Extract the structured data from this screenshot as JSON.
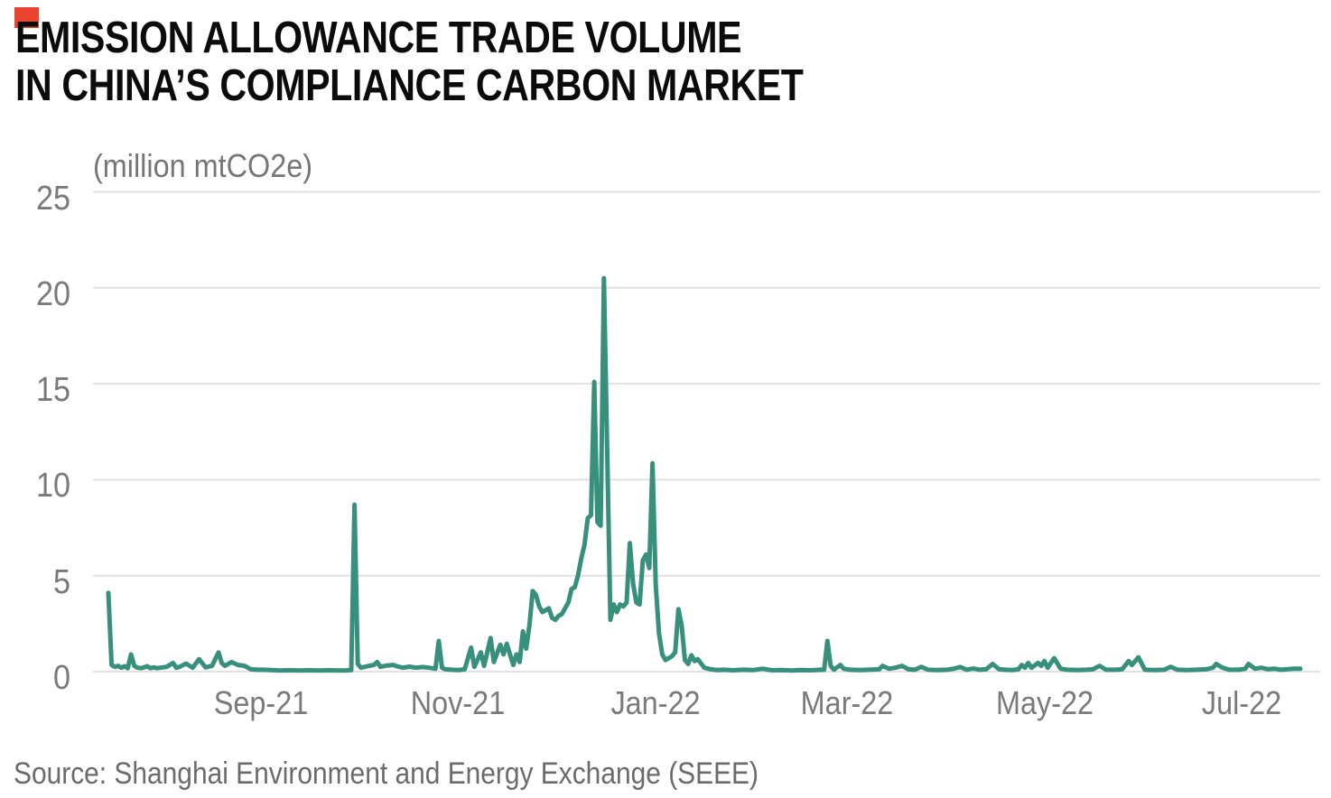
{
  "brand": {
    "mark_color": "#e8432d"
  },
  "title": {
    "line1": "EMISSION ALLOWANCE TRADE VOLUME",
    "line2": "IN CHINA’S COMPLIANCE CARBON MARKET"
  },
  "source_text": "Source: Shanghai Environment and Energy Exchange (SEEE)",
  "chart_data": {
    "type": "line",
    "title": "Emission allowance trade volume in China's compliance carbon market",
    "unit_label": "(million mtCO2e)",
    "ylabel": "million mtCO2e",
    "ylim": [
      0,
      25
    ],
    "y_ticks": [
      25,
      20,
      15,
      10,
      5,
      0
    ],
    "grid": true,
    "legend": "none",
    "line_color": "#36907b",
    "grid_color": "#e1e1e1",
    "axis_text_color": "#7a7a7a",
    "start_date": "2021-07-16",
    "x_ticks": [
      {
        "label": "Sep-21",
        "day": 47
      },
      {
        "label": "Nov-21",
        "day": 108
      },
      {
        "label": "Jan-22",
        "day": 169
      },
      {
        "label": "Mar-22",
        "day": 228
      },
      {
        "label": "May-22",
        "day": 289
      },
      {
        "label": "Jul-22",
        "day": 350
      }
    ],
    "points": [
      [
        0,
        4.1
      ],
      [
        1,
        0.35
      ],
      [
        2,
        0.25
      ],
      [
        3,
        0.3
      ],
      [
        4,
        0.2
      ],
      [
        5,
        0.28
      ],
      [
        6,
        0.18
      ],
      [
        7,
        0.9
      ],
      [
        8,
        0.3
      ],
      [
        9,
        0.2
      ],
      [
        10,
        0.18
      ],
      [
        11,
        0.22
      ],
      [
        12,
        0.28
      ],
      [
        13,
        0.18
      ],
      [
        14,
        0.22
      ],
      [
        15,
        0.18
      ],
      [
        16,
        0.2
      ],
      [
        18,
        0.25
      ],
      [
        20,
        0.45
      ],
      [
        21,
        0.2
      ],
      [
        22,
        0.25
      ],
      [
        24,
        0.42
      ],
      [
        26,
        0.2
      ],
      [
        28,
        0.65
      ],
      [
        30,
        0.22
      ],
      [
        32,
        0.3
      ],
      [
        34,
        1.0
      ],
      [
        35,
        0.45
      ],
      [
        36,
        0.3
      ],
      [
        38,
        0.5
      ],
      [
        40,
        0.35
      ],
      [
        42,
        0.3
      ],
      [
        44,
        0.12
      ],
      [
        46,
        0.1
      ],
      [
        48,
        0.1
      ],
      [
        50,
        0.08
      ],
      [
        53,
        0.06
      ],
      [
        56,
        0.07
      ],
      [
        59,
        0.06
      ],
      [
        62,
        0.07
      ],
      [
        65,
        0.06
      ],
      [
        68,
        0.07
      ],
      [
        71,
        0.06
      ],
      [
        73,
        0.06
      ],
      [
        75,
        0.08
      ],
      [
        76,
        8.7
      ],
      [
        77,
        0.4
      ],
      [
        78,
        0.2
      ],
      [
        80,
        0.28
      ],
      [
        82,
        0.35
      ],
      [
        83,
        0.5
      ],
      [
        84,
        0.25
      ],
      [
        86,
        0.32
      ],
      [
        88,
        0.35
      ],
      [
        89,
        0.28
      ],
      [
        91,
        0.2
      ],
      [
        93,
        0.26
      ],
      [
        95,
        0.2
      ],
      [
        97,
        0.24
      ],
      [
        99,
        0.2
      ],
      [
        101,
        0.15
      ],
      [
        102,
        1.6
      ],
      [
        103,
        0.2
      ],
      [
        104,
        0.12
      ],
      [
        106,
        0.1
      ],
      [
        108,
        0.08
      ],
      [
        110,
        0.12
      ],
      [
        112,
        1.25
      ],
      [
        113,
        0.25
      ],
      [
        115,
        1.0
      ],
      [
        116,
        0.3
      ],
      [
        118,
        1.75
      ],
      [
        119,
        0.5
      ],
      [
        121,
        1.4
      ],
      [
        122,
        0.9
      ],
      [
        123,
        1.45
      ],
      [
        125,
        0.35
      ],
      [
        126,
        0.9
      ],
      [
        127,
        0.5
      ],
      [
        128,
        2.1
      ],
      [
        129,
        1.2
      ],
      [
        130,
        2.4
      ],
      [
        131,
        4.2
      ],
      [
        132,
        4.0
      ],
      [
        133,
        3.4
      ],
      [
        134,
        3.1
      ],
      [
        135,
        3.2
      ],
      [
        136,
        3.3
      ],
      [
        137,
        2.8
      ],
      [
        138,
        2.7
      ],
      [
        139,
        2.9
      ],
      [
        140,
        3.0
      ],
      [
        141,
        3.3
      ],
      [
        142,
        3.6
      ],
      [
        143,
        4.3
      ],
      [
        144,
        4.4
      ],
      [
        145,
        5.0
      ],
      [
        146,
        5.9
      ],
      [
        147,
        6.6
      ],
      [
        148,
        8.0
      ],
      [
        149,
        8.15
      ],
      [
        150,
        15.1
      ],
      [
        151,
        7.8
      ],
      [
        152,
        7.6
      ],
      [
        153,
        20.5
      ],
      [
        155,
        2.7
      ],
      [
        156,
        3.5
      ],
      [
        157,
        3.1
      ],
      [
        158,
        3.5
      ],
      [
        159,
        3.4
      ],
      [
        160,
        3.6
      ],
      [
        161,
        6.7
      ],
      [
        162,
        4.6
      ],
      [
        163,
        3.6
      ],
      [
        164,
        3.5
      ],
      [
        165,
        5.8
      ],
      [
        166,
        6.1
      ],
      [
        167,
        5.4
      ],
      [
        168,
        10.85
      ],
      [
        169,
        4.5
      ],
      [
        170,
        2.0
      ],
      [
        171,
        0.9
      ],
      [
        172,
        0.6
      ],
      [
        173,
        0.7
      ],
      [
        174,
        0.8
      ],
      [
        175,
        1.0
      ],
      [
        176,
        3.25
      ],
      [
        177,
        2.4
      ],
      [
        178,
        0.6
      ],
      [
        179,
        0.4
      ],
      [
        180,
        0.85
      ],
      [
        181,
        0.55
      ],
      [
        182,
        0.65
      ],
      [
        184,
        0.2
      ],
      [
        186,
        0.12
      ],
      [
        188,
        0.08
      ],
      [
        190,
        0.1
      ],
      [
        193,
        0.07
      ],
      [
        196,
        0.1
      ],
      [
        199,
        0.08
      ],
      [
        202,
        0.15
      ],
      [
        205,
        0.07
      ],
      [
        208,
        0.08
      ],
      [
        211,
        0.06
      ],
      [
        214,
        0.08
      ],
      [
        217,
        0.07
      ],
      [
        220,
        0.1
      ],
      [
        221,
        0.1
      ],
      [
        222,
        1.6
      ],
      [
        223,
        0.3
      ],
      [
        224,
        0.1
      ],
      [
        226,
        0.35
      ],
      [
        227,
        0.15
      ],
      [
        229,
        0.1
      ],
      [
        232,
        0.08
      ],
      [
        235,
        0.1
      ],
      [
        238,
        0.12
      ],
      [
        239,
        0.3
      ],
      [
        241,
        0.15
      ],
      [
        243,
        0.2
      ],
      [
        245,
        0.3
      ],
      [
        247,
        0.12
      ],
      [
        249,
        0.1
      ],
      [
        251,
        0.25
      ],
      [
        253,
        0.1
      ],
      [
        256,
        0.08
      ],
      [
        259,
        0.1
      ],
      [
        261,
        0.15
      ],
      [
        263,
        0.24
      ],
      [
        265,
        0.1
      ],
      [
        267,
        0.16
      ],
      [
        269,
        0.1
      ],
      [
        271,
        0.12
      ],
      [
        273,
        0.4
      ],
      [
        275,
        0.12
      ],
      [
        277,
        0.1
      ],
      [
        279,
        0.08
      ],
      [
        281,
        0.12
      ],
      [
        282,
        0.35
      ],
      [
        283,
        0.2
      ],
      [
        284,
        0.45
      ],
      [
        285,
        0.2
      ],
      [
        287,
        0.45
      ],
      [
        288,
        0.3
      ],
      [
        289,
        0.55
      ],
      [
        290,
        0.2
      ],
      [
        292,
        0.7
      ],
      [
        294,
        0.15
      ],
      [
        296,
        0.1
      ],
      [
        299,
        0.08
      ],
      [
        302,
        0.1
      ],
      [
        304,
        0.12
      ],
      [
        306,
        0.3
      ],
      [
        308,
        0.1
      ],
      [
        311,
        0.1
      ],
      [
        313,
        0.12
      ],
      [
        315,
        0.55
      ],
      [
        316,
        0.35
      ],
      [
        318,
        0.75
      ],
      [
        320,
        0.1
      ],
      [
        323,
        0.08
      ],
      [
        326,
        0.1
      ],
      [
        328,
        0.25
      ],
      [
        330,
        0.1
      ],
      [
        333,
        0.08
      ],
      [
        336,
        0.1
      ],
      [
        339,
        0.12
      ],
      [
        341,
        0.2
      ],
      [
        342,
        0.4
      ],
      [
        344,
        0.2
      ],
      [
        346,
        0.1
      ],
      [
        349,
        0.1
      ],
      [
        351,
        0.15
      ],
      [
        352,
        0.4
      ],
      [
        354,
        0.15
      ],
      [
        356,
        0.2
      ],
      [
        358,
        0.12
      ],
      [
        360,
        0.15
      ],
      [
        362,
        0.1
      ],
      [
        364,
        0.12
      ],
      [
        366,
        0.15
      ],
      [
        368,
        0.15
      ]
    ]
  }
}
